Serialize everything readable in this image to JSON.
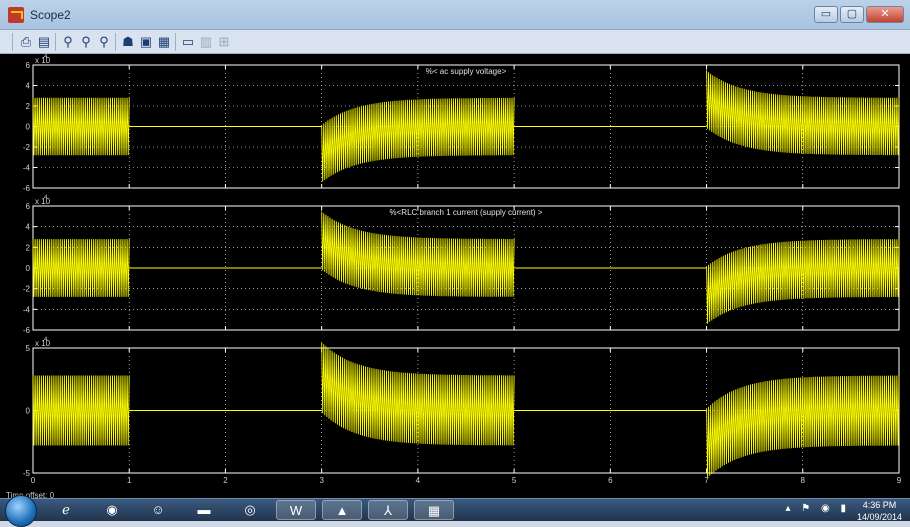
{
  "window": {
    "title": "Scope2",
    "controls": {
      "minimize": "▭",
      "maximize": "▢",
      "close": "✕"
    }
  },
  "toolbar": {
    "icons": [
      "print-icon",
      "print-preview-icon",
      "zoom-in-icon",
      "zoom-x-icon",
      "zoom-y-icon",
      "autoscale-icon",
      "save-axes-settings-icon",
      "scope-parameters-icon",
      "floating-scope-icon",
      "signal-selection-icon",
      "legend-icon"
    ]
  },
  "scope": {
    "background": "#000000",
    "axes_color": "#ffffff",
    "trace_color": "#ffff00",
    "time_offset": "Time offset:  0",
    "x_tick_labels": [
      "0",
      "1",
      "2",
      "3",
      "4",
      "5",
      "6",
      "7",
      "8",
      "9"
    ]
  },
  "chart_data": [
    {
      "type": "line",
      "title": "%< ac supply voltage>",
      "exponent_label": "x 10",
      "exponent": "4",
      "ytick_labels": [
        "6",
        "4",
        "2",
        "0",
        "-2",
        "-4",
        "-6"
      ],
      "xlim": [
        0,
        9
      ],
      "ylim": [
        -6,
        6
      ],
      "grid": true,
      "series": [
        {
          "segments": [
            {
              "t": [
                0,
                1
              ],
              "amplitude": 2.8,
              "transient": "none"
            },
            {
              "t": [
                1,
                3
              ],
              "amplitude": 0,
              "transient": "none"
            },
            {
              "t": [
                3,
                5
              ],
              "amplitude": 2.8,
              "transient": "rising-low"
            },
            {
              "t": [
                5,
                7
              ],
              "amplitude": 0,
              "transient": "none"
            },
            {
              "t": [
                7,
                9
              ],
              "amplitude": 2.8,
              "transient": "falling-high"
            }
          ]
        }
      ]
    },
    {
      "type": "line",
      "title": "%<RLC branch 1 current (supply current) >",
      "exponent_label": "x 10",
      "exponent": "4",
      "ytick_labels": [
        "6",
        "4",
        "2",
        "0",
        "-2",
        "-4",
        "-6"
      ],
      "xlim": [
        0,
        9
      ],
      "ylim": [
        -6,
        6
      ],
      "grid": true,
      "series": [
        {
          "segments": [
            {
              "t": [
                0,
                1
              ],
              "amplitude": 2.8,
              "transient": "none"
            },
            {
              "t": [
                1,
                3
              ],
              "amplitude": 0,
              "transient": "none"
            },
            {
              "t": [
                3,
                5
              ],
              "amplitude": 2.8,
              "transient": "falling-high"
            },
            {
              "t": [
                5,
                7
              ],
              "amplitude": 0,
              "transient": "none"
            },
            {
              "t": [
                7,
                9
              ],
              "amplitude": 2.8,
              "transient": "rising-low"
            }
          ]
        }
      ]
    },
    {
      "type": "line",
      "title": "",
      "exponent_label": "x 10",
      "exponent": "4",
      "ytick_labels": [
        "5",
        "0",
        "-5"
      ],
      "xlim": [
        0,
        9
      ],
      "ylim": [
        -5,
        5
      ],
      "grid": true,
      "series": [
        {
          "segments": [
            {
              "t": [
                0,
                1
              ],
              "amplitude": 2.8,
              "transient": "none"
            },
            {
              "t": [
                1,
                3
              ],
              "amplitude": 0,
              "transient": "none"
            },
            {
              "t": [
                3,
                5
              ],
              "amplitude": 2.8,
              "transient": "falling-high"
            },
            {
              "t": [
                5,
                7
              ],
              "amplitude": 0,
              "transient": "none"
            },
            {
              "t": [
                7,
                9
              ],
              "amplitude": 2.8,
              "transient": "rising-low"
            }
          ]
        }
      ]
    }
  ],
  "taskbar": {
    "apps": [
      "internet-explorer-icon",
      "media-player-icon",
      "messenger-icon",
      "file-explorer-icon",
      "chrome-icon",
      "word-icon",
      "matlab-icon",
      "acrobat-icon",
      "calculator-icon"
    ],
    "clock_time": "4:36 PM",
    "clock_date": "14/09/2014"
  }
}
